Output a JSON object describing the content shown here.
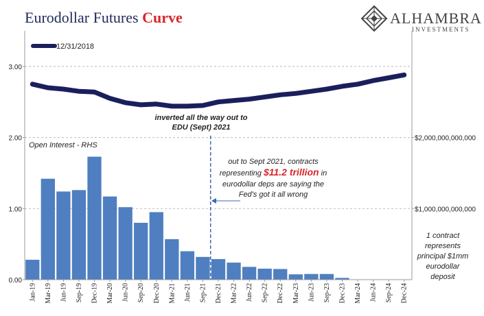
{
  "title": {
    "part1": "Eurodollar Futures ",
    "part2": "Curve",
    "color1": "#1f2a5a",
    "color2": "#d9262b"
  },
  "logo": {
    "name": "ALHAMBRA",
    "sub": "INVESTMENTS",
    "color": "#444444"
  },
  "annotations": {
    "inverted_line1": "inverted all the way out to",
    "inverted_line2": "EDU (Sept) 2021",
    "oi_label": "Open Interest - RHS",
    "note_line1": "out to Sept 2021, contracts",
    "note_line2a": "representing ",
    "note_line2b": "$11.2 trillion",
    "note_line2c": " in",
    "note_line3": "eurodollar deps are saying the",
    "note_line4": "Fed's got it all wrong",
    "right_note": [
      "1 contract",
      "represents",
      "principal $1mm",
      "eurodollar",
      "deposit"
    ]
  },
  "colors": {
    "line": "#1a1f5c",
    "bar": "#4f7fc0",
    "highlight": "#d9262b",
    "oi_label": "#4f7fc0",
    "grid": "#bbbbbb"
  },
  "chart_data": {
    "type": "bar+line",
    "categories": [
      "Jan-19",
      "Mar-19",
      "Jun-19",
      "Sep-19",
      "Dec-19",
      "Mar-20",
      "Jun-20",
      "Sep-20",
      "Dec-20",
      "Mar-21",
      "Jun-21",
      "Sep-21",
      "Dec-21",
      "Mar-22",
      "Jun-22",
      "Sep-22",
      "Dec-22",
      "Mar-23",
      "Jun-23",
      "Sep-23",
      "Dec-23",
      "Mar-24",
      "Jun-24",
      "Sep-24",
      "Dec-24"
    ],
    "left_axis": {
      "ylim": [
        0,
        3.5
      ],
      "ticks": [
        "0.00",
        "1.00",
        "2.00",
        "3.00"
      ],
      "tick_values": [
        0,
        1,
        2,
        3
      ]
    },
    "right_axis": {
      "ylim": [
        0,
        3500000000000
      ],
      "ticks": [
        "$1,000,000,000,000",
        "$2,000,000,000,000"
      ],
      "tick_values": [
        1000000000000,
        2000000000000
      ]
    },
    "series": [
      {
        "name": "12/31/2018",
        "kind": "line",
        "axis": "left",
        "values": [
          2.75,
          2.7,
          2.68,
          2.65,
          2.64,
          2.55,
          2.49,
          2.46,
          2.47,
          2.44,
          2.44,
          2.45,
          2.5,
          2.52,
          2.54,
          2.57,
          2.6,
          2.62,
          2.65,
          2.68,
          2.72,
          2.75,
          2.8,
          2.84,
          2.88
        ]
      },
      {
        "name": "Open Interest - RHS",
        "kind": "bar",
        "axis": "right",
        "values": [
          280000000000,
          1420000000000,
          1240000000000,
          1260000000000,
          1730000000000,
          1170000000000,
          1020000000000,
          800000000000,
          950000000000,
          570000000000,
          400000000000,
          320000000000,
          290000000000,
          240000000000,
          180000000000,
          155000000000,
          150000000000,
          75000000000,
          80000000000,
          80000000000,
          25000000000,
          0,
          0,
          0,
          0
        ]
      }
    ],
    "legend": {
      "position": "top-left",
      "entries": [
        "12/31/2018"
      ]
    },
    "vline_category": "Sep-21"
  }
}
